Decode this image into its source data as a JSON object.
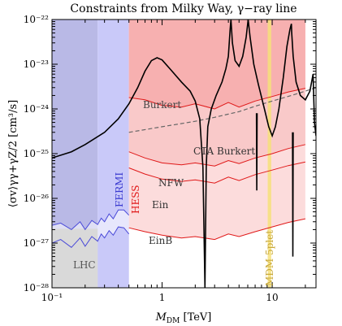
{
  "chart_data": {
    "type": "line",
    "title": "Constraints from Milky Way, γ−ray line",
    "xlabel_main": "M",
    "xlabel_sub": "DM",
    "xlabel_unit": " [TeV]",
    "ylabel": "⟨σv⟩γγ+γZ/2 [cm³/s]",
    "xscale": "log",
    "yscale": "log",
    "xlim": [
      0.1,
      25
    ],
    "ylim": [
      1e-28,
      1e-22
    ],
    "x_ticks": [
      {
        "v": 0.1,
        "label": "10⁻¹"
      },
      {
        "v": 1,
        "label": "1"
      },
      {
        "v": 10,
        "label": "10"
      }
    ],
    "y_ticks": [
      {
        "v": -28,
        "label": "10⁻²⁸"
      },
      {
        "v": -27,
        "label": "10⁻²⁷"
      },
      {
        "v": -26,
        "label": "10⁻²⁶"
      },
      {
        "v": -25,
        "label": "10⁻²⁵"
      },
      {
        "v": -24,
        "label": "10⁻²⁴"
      },
      {
        "v": -23,
        "label": "10⁻²³"
      },
      {
        "v": -22,
        "label": "10⁻²²"
      }
    ],
    "colors": {
      "lhc": "#d9d9d9",
      "fermi_dark": "#b9b9e6",
      "fermi_light": "#c9c9f9",
      "fermi_line": "#4a4ad8",
      "hess_strong": "#f7b0b0",
      "hess_mid": "#f9c9c9",
      "hess_light": "#fcdcdc",
      "hess_line": "#e01818",
      "mdm_band": "#f6e07a",
      "cta": "#666666",
      "theory": "#000000"
    },
    "regions": [
      {
        "name": "LHC",
        "x": [
          0.1,
          0.26
        ],
        "y_top": 3e-28
      },
      {
        "name": "FERMI",
        "x": [
          0.1,
          0.5
        ]
      },
      {
        "name": "HESS",
        "x": [
          0.5,
          20
        ]
      },
      {
        "name": "MDM 5plet",
        "x": [
          9.1,
          9.8
        ]
      }
    ],
    "labels": {
      "lhc": "LHC",
      "fermi": "FERMI",
      "hess": "HESS",
      "burkert": "Burkert",
      "cta": "CTA Burkert",
      "nfw": "NFW",
      "ein": "Ein",
      "einb": "EinB",
      "mdm": "MDM 5plet"
    },
    "series": [
      {
        "key": "fermi_upper",
        "x": [
          0.1,
          0.12,
          0.15,
          0.18,
          0.2,
          0.23,
          0.26,
          0.28,
          0.3,
          0.33,
          0.36,
          0.4,
          0.45,
          0.5
        ],
        "y": [
          2.5e-27,
          2.8e-27,
          2e-27,
          3e-27,
          2e-27,
          3.2e-27,
          2.6e-27,
          3.6e-27,
          3e-27,
          4.5e-27,
          3.5e-27,
          5.5e-27,
          5.5e-27,
          4.2e-27
        ]
      },
      {
        "key": "fermi_lower",
        "x": [
          0.1,
          0.12,
          0.15,
          0.18,
          0.2,
          0.23,
          0.26,
          0.28,
          0.3,
          0.33,
          0.36,
          0.4,
          0.45,
          0.5
        ],
        "y": [
          1e-27,
          1.2e-27,
          8e-28,
          1.3e-27,
          8.5e-28,
          1.4e-27,
          1.1e-27,
          1.6e-27,
          1.3e-27,
          1.9e-27,
          1.5e-27,
          2.3e-27,
          2.2e-27,
          1.6e-27
        ]
      },
      {
        "key": "hess_burkert",
        "x": [
          0.5,
          0.7,
          1.0,
          1.5,
          2.0,
          3.0,
          4.0,
          5.0,
          7.0,
          10,
          14,
          20
        ],
        "y": [
          1.8e-24,
          1.6e-24,
          1.2e-24,
          1.1e-24,
          1.3e-24,
          1e-24,
          1.4e-24,
          1.1e-24,
          1.5e-24,
          1.9e-24,
          2.4e-24,
          2.9e-24
        ]
      },
      {
        "key": "hess_nfw",
        "x": [
          0.5,
          0.7,
          1.0,
          1.5,
          2.0,
          3.0,
          4.0,
          5.0,
          7.0,
          10,
          14,
          20
        ],
        "y": [
          1.1e-25,
          8e-26,
          6.2e-26,
          5.6e-26,
          6.2e-26,
          5.3e-26,
          7e-26,
          6e-26,
          8e-26,
          1e-25,
          1.3e-25,
          1.6e-25
        ]
      },
      {
        "key": "hess_ein",
        "x": [
          0.5,
          0.7,
          1.0,
          1.5,
          2.0,
          3.0,
          4.0,
          5.0,
          7.0,
          10,
          14,
          20
        ],
        "y": [
          4.8e-26,
          3.5e-26,
          2.7e-26,
          2.4e-26,
          2.6e-26,
          2.2e-26,
          3e-26,
          2.5e-26,
          3.4e-26,
          4.3e-26,
          5.4e-26,
          6.5e-26
        ]
      },
      {
        "key": "hess_einb",
        "x": [
          0.5,
          0.7,
          1.0,
          1.5,
          2.0,
          3.0,
          4.0,
          5.0,
          7.0,
          10,
          14,
          20
        ],
        "y": [
          2.2e-27,
          1.8e-27,
          1.5e-27,
          1.3e-27,
          1.4e-27,
          1.2e-27,
          1.6e-27,
          1.4e-27,
          1.8e-27,
          2.3e-27,
          2.9e-27,
          3.5e-27
        ]
      },
      {
        "key": "cta",
        "x": [
          0.5,
          1.0,
          2.0,
          3.0,
          5.0,
          7.0,
          10,
          15,
          20,
          25
        ],
        "y": [
          3e-25,
          4e-25,
          5.3e-25,
          6.5e-25,
          8.7e-25,
          1.15e-24,
          1.5e-24,
          2e-24,
          2.5e-24,
          3e-24
        ]
      },
      {
        "key": "theory",
        "x": [
          0.1,
          0.15,
          0.2,
          0.3,
          0.4,
          0.5,
          0.6,
          0.7,
          0.8,
          0.9,
          1.0,
          1.2,
          1.5,
          1.8,
          2.0,
          2.2,
          2.35,
          2.45,
          2.52,
          2.6,
          2.8,
          3.1,
          3.5,
          3.8,
          4.0,
          4.15,
          4.22,
          4.35,
          4.6,
          5.0,
          5.4,
          5.8,
          6.05,
          6.3,
          6.8,
          7.5,
          8.5,
          9.3,
          10.0,
          10.7,
          11.5,
          12.6,
          13.6,
          14.5,
          14.95,
          15.05,
          15.5,
          16.5,
          18.0,
          20.0,
          22.0,
          23.5,
          24.2,
          25.0
        ],
        "y": [
          8e-26,
          1.1e-25,
          1.6e-25,
          3e-25,
          6e-25,
          1.3e-24,
          3e-24,
          7e-24,
          1.2e-23,
          1.4e-23,
          1.25e-23,
          7.5e-24,
          4e-24,
          2.5e-24,
          1.5e-24,
          6e-25,
          5e-26,
          1e-28,
          5e-26,
          4e-25,
          1e-24,
          2e-24,
          4e-24,
          8e-24,
          1.5e-23,
          6e-23,
          1e-22,
          3e-23,
          1.2e-23,
          9e-24,
          1.5e-23,
          4e-23,
          1e-22,
          4e-23,
          1e-23,
          3.5e-24,
          1e-24,
          4e-25,
          2.5e-25,
          4e-25,
          1e-24,
          5e-24,
          2.5e-23,
          6e-23,
          8e-23,
          5e-23,
          1.5e-23,
          4e-24,
          2e-24,
          1.6e-24,
          2.5e-24,
          6e-24,
          5e-25,
          2.5e-25
        ]
      },
      {
        "key": "theory_spike1",
        "x": [
          7.2,
          7.25,
          7.3
        ],
        "y": [
          8e-25,
          1.5e-26,
          8e-25
        ]
      },
      {
        "key": "theory_spike2",
        "x": [
          15.3,
          15.4,
          15.5
        ],
        "y": [
          3e-25,
          5e-28,
          3e-25
        ]
      }
    ]
  }
}
